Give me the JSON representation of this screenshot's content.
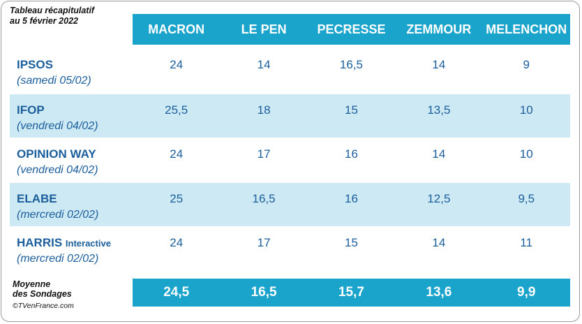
{
  "caption": {
    "line1": "Tableau récapitulatif",
    "line2": "au 5 février 2022"
  },
  "candidates": [
    "MACRON",
    "LE PEN",
    "PECRESSE",
    "ZEMMOUR",
    "MELENCHON"
  ],
  "polls": [
    {
      "name": "IPSOS",
      "suffix": "",
      "date": "(samedi 05/02)",
      "values": [
        "24",
        "14",
        "16,5",
        "14",
        "9"
      ]
    },
    {
      "name": "IFOP",
      "suffix": "",
      "date": "(vendredi 04/02)",
      "values": [
        "25,5",
        "18",
        "15",
        "13,5",
        "10"
      ]
    },
    {
      "name": "OPINION WAY",
      "suffix": "",
      "date": "(vendredi 04/02)",
      "values": [
        "24",
        "17",
        "16",
        "14",
        "10"
      ]
    },
    {
      "name": "ELABE",
      "suffix": "",
      "date": "(mercredi 02/02)",
      "values": [
        "25",
        "16,5",
        "16",
        "12,5",
        "9,5"
      ]
    },
    {
      "name": "HARRIS",
      "suffix": "Interactive",
      "date": "(mercredi 02/02)",
      "values": [
        "24",
        "17",
        "15",
        "14",
        "11"
      ]
    }
  ],
  "average": {
    "label_line1": "Moyenne",
    "label_line2": "des Sondages",
    "values": [
      "24,5",
      "16,5",
      "15,7",
      "13,6",
      "9,9"
    ]
  },
  "copyright": "©TVenFrance.com",
  "colors": {
    "header": "#1aa4cc",
    "shaded_row": "#cde9f3",
    "text": "#1b5e9c"
  }
}
